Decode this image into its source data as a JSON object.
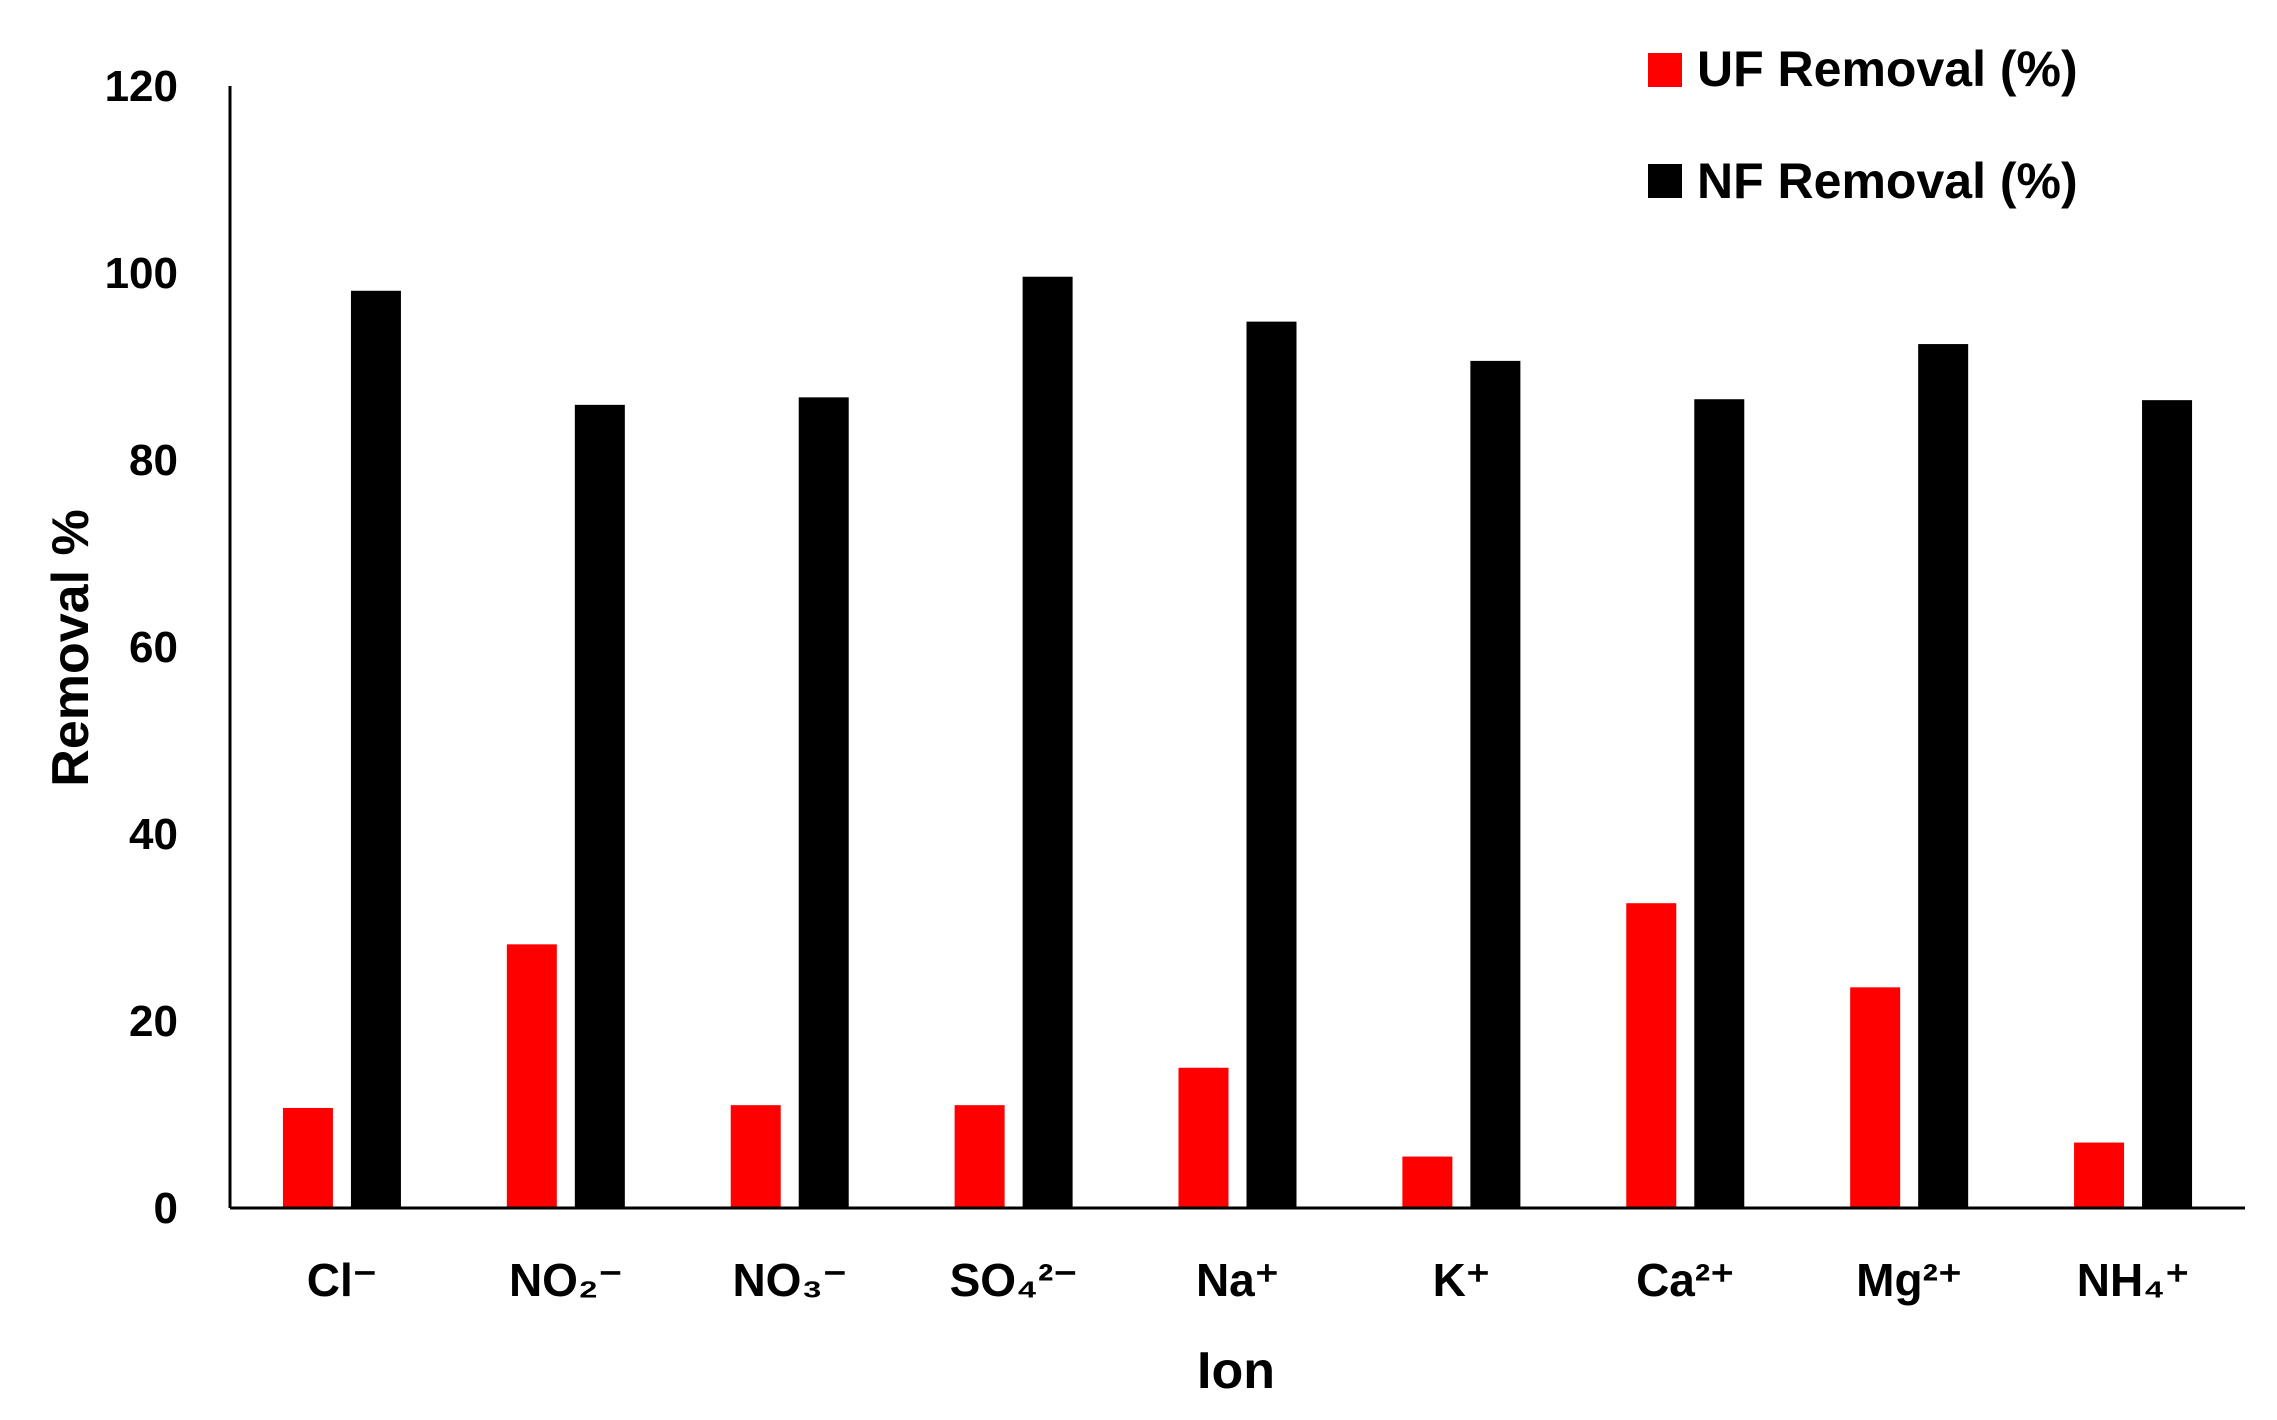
{
  "chart_data": {
    "type": "bar",
    "categories": [
      "Cl⁻",
      "NO₂⁻",
      "NO₃⁻",
      "SO₄²⁻",
      "Na⁺",
      "K⁺",
      "Ca²⁺",
      "Mg²⁺",
      "NH₄⁺"
    ],
    "series": [
      {
        "name": "UF Removal (%)",
        "color": "#ff0000",
        "values": [
          10.7,
          28.2,
          11.0,
          11.0,
          15.0,
          5.5,
          32.6,
          23.6,
          7.0
        ]
      },
      {
        "name": "NF Removal (%)",
        "color": "#000000",
        "values": [
          98.1,
          85.9,
          86.7,
          99.6,
          94.8,
          90.6,
          86.5,
          92.4,
          86.4
        ]
      }
    ],
    "title": "",
    "xlabel": "Ion",
    "ylabel": "Removal %",
    "ylim": [
      0,
      120
    ],
    "yticks": [
      0,
      20,
      40,
      60,
      80,
      100,
      120
    ],
    "grid": false,
    "legend_position": "top-right"
  }
}
